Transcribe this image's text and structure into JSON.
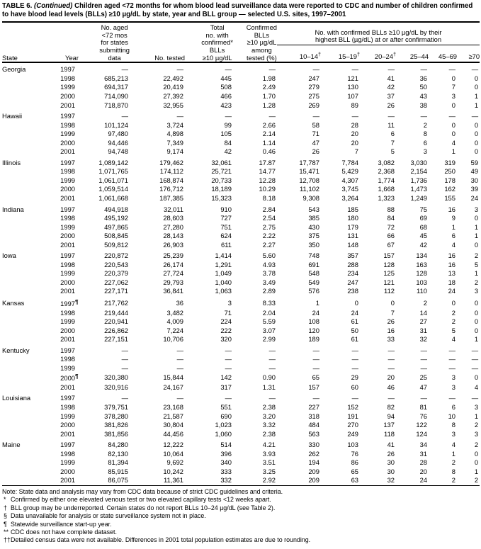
{
  "title": {
    "label": "TABLE 6.",
    "continued": "(Continued)",
    "text": "Children aged <72 months for whom blood lead surveillance data were reported to CDC and number of children confirmed to have blood lead levels (BLLs) ≥10 µg/dL by state, year and BLL group — selected U.S. sites, 1997–2001"
  },
  "header": {
    "state": "State",
    "year": "Year",
    "no_aged_lines": [
      "No. aged",
      "<72 mos",
      "for states",
      "submitting",
      "data"
    ],
    "no_tested": "No. tested",
    "total_confirmed_lines": [
      "Total",
      "no. with",
      "confirmed*",
      "BLLs",
      "≥10 µg/dL"
    ],
    "confirmed_pct_lines": [
      "Confirmed",
      "BLLs",
      "≥10 µg/dL",
      "among",
      "tested (%)"
    ],
    "group_header_lines": [
      "No. with confirmed BLLs ≥10 µg/dL by their",
      "highest BLL (µg/dL) at or after confirmation"
    ],
    "bll_columns": [
      {
        "label": "10–14",
        "marker": "†"
      },
      {
        "label": "15–19",
        "marker": "†"
      },
      {
        "label": "20–24",
        "marker": "†"
      },
      {
        "label": "25–44",
        "marker": ""
      },
      {
        "label": "45–69",
        "marker": ""
      },
      {
        "label": "≥70",
        "marker": ""
      }
    ]
  },
  "table": {
    "groups": [
      {
        "state": "Georgia",
        "rows": [
          {
            "year": "1997",
            "marker": "",
            "cells": [
              "—",
              "—",
              "—",
              "—",
              "—",
              "—",
              "—",
              "—",
              "—",
              "—"
            ]
          },
          {
            "year": "1998",
            "marker": "",
            "cells": [
              "685,213",
              "22,492",
              "445",
              "1.98",
              "247",
              "121",
              "41",
              "36",
              "0",
              "0"
            ]
          },
          {
            "year": "1999",
            "marker": "",
            "cells": [
              "694,317",
              "20,419",
              "508",
              "2.49",
              "279",
              "130",
              "42",
              "50",
              "7",
              "0"
            ]
          },
          {
            "year": "2000",
            "marker": "",
            "cells": [
              "714,090",
              "27,392",
              "466",
              "1.70",
              "275",
              "107",
              "37",
              "43",
              "3",
              "1"
            ]
          },
          {
            "year": "2001",
            "marker": "",
            "cells": [
              "718,870",
              "32,955",
              "423",
              "1.28",
              "269",
              "89",
              "26",
              "38",
              "0",
              "1"
            ]
          }
        ]
      },
      {
        "state": "Hawaii",
        "rows": [
          {
            "year": "1997",
            "marker": "",
            "cells": [
              "—",
              "—",
              "—",
              "—",
              "—",
              "—",
              "—",
              "—",
              "—",
              "—"
            ]
          },
          {
            "year": "1998",
            "marker": "",
            "cells": [
              "101,124",
              "3,724",
              "99",
              "2.66",
              "58",
              "28",
              "11",
              "2",
              "0",
              "0"
            ]
          },
          {
            "year": "1999",
            "marker": "",
            "cells": [
              "97,480",
              "4,898",
              "105",
              "2.14",
              "71",
              "20",
              "6",
              "8",
              "0",
              "0"
            ]
          },
          {
            "year": "2000",
            "marker": "",
            "cells": [
              "94,446",
              "7,349",
              "84",
              "1.14",
              "47",
              "20",
              "7",
              "6",
              "4",
              "0"
            ]
          },
          {
            "year": "2001",
            "marker": "",
            "cells": [
              "94,748",
              "9,174",
              "42",
              "0.46",
              "26",
              "7",
              "5",
              "3",
              "1",
              "0"
            ]
          }
        ]
      },
      {
        "state": "Illinois",
        "rows": [
          {
            "year": "1997",
            "marker": "",
            "cells": [
              "1,089,142",
              "179,462",
              "32,061",
              "17.87",
              "17,787",
              "7,784",
              "3,082",
              "3,030",
              "319",
              "59"
            ]
          },
          {
            "year": "1998",
            "marker": "",
            "cells": [
              "1,071,765",
              "174,112",
              "25,721",
              "14.77",
              "15,471",
              "5,429",
              "2,368",
              "2,154",
              "250",
              "49"
            ]
          },
          {
            "year": "1999",
            "marker": "",
            "cells": [
              "1,061,071",
              "168,874",
              "20,733",
              "12.28",
              "12,708",
              "4,307",
              "1,774",
              "1,736",
              "178",
              "30"
            ]
          },
          {
            "year": "2000",
            "marker": "",
            "cells": [
              "1,059,514",
              "176,712",
              "18,189",
              "10.29",
              "11,102",
              "3,745",
              "1,668",
              "1,473",
              "162",
              "39"
            ]
          },
          {
            "year": "2001",
            "marker": "",
            "cells": [
              "1,061,668",
              "187,385",
              "15,323",
              "8.18",
              "9,308",
              "3,264",
              "1,323",
              "1,249",
              "155",
              "24"
            ]
          }
        ]
      },
      {
        "state": "Indiana",
        "rows": [
          {
            "year": "1997",
            "marker": "",
            "cells": [
              "494,918",
              "32,011",
              "910",
              "2.84",
              "543",
              "185",
              "88",
              "75",
              "16",
              "3"
            ]
          },
          {
            "year": "1998",
            "marker": "",
            "cells": [
              "495,192",
              "28,603",
              "727",
              "2.54",
              "385",
              "180",
              "84",
              "69",
              "9",
              "0"
            ]
          },
          {
            "year": "1999",
            "marker": "",
            "cells": [
              "497,865",
              "27,280",
              "751",
              "2.75",
              "430",
              "179",
              "72",
              "68",
              "1",
              "1"
            ]
          },
          {
            "year": "2000",
            "marker": "",
            "cells": [
              "508,845",
              "28,143",
              "624",
              "2.22",
              "375",
              "131",
              "66",
              "45",
              "6",
              "1"
            ]
          },
          {
            "year": "2001",
            "marker": "",
            "cells": [
              "509,812",
              "26,903",
              "611",
              "2.27",
              "350",
              "148",
              "67",
              "42",
              "4",
              "0"
            ]
          }
        ]
      },
      {
        "state": "Iowa",
        "rows": [
          {
            "year": "1997",
            "marker": "",
            "cells": [
              "220,872",
              "25,239",
              "1,414",
              "5.60",
              "748",
              "357",
              "157",
              "134",
              "16",
              "2"
            ]
          },
          {
            "year": "1998",
            "marker": "",
            "cells": [
              "220,543",
              "26,174",
              "1,291",
              "4.93",
              "691",
              "288",
              "128",
              "163",
              "16",
              "5"
            ]
          },
          {
            "year": "1999",
            "marker": "",
            "cells": [
              "220,379",
              "27,724",
              "1,049",
              "3.78",
              "548",
              "234",
              "125",
              "128",
              "13",
              "1"
            ]
          },
          {
            "year": "2000",
            "marker": "",
            "cells": [
              "227,062",
              "29,793",
              "1,040",
              "3.49",
              "549",
              "247",
              "121",
              "103",
              "18",
              "2"
            ]
          },
          {
            "year": "2001",
            "marker": "",
            "cells": [
              "227,171",
              "36,841",
              "1,063",
              "2.89",
              "576",
              "238",
              "112",
              "110",
              "24",
              "3"
            ]
          }
        ]
      },
      {
        "state": "Kansas",
        "rows": [
          {
            "year": "1997",
            "marker": "¶",
            "cells": [
              "217,762",
              "36",
              "3",
              "8.33",
              "1",
              "0",
              "0",
              "2",
              "0",
              "0"
            ]
          },
          {
            "year": "1998",
            "marker": "",
            "cells": [
              "219,444",
              "3,482",
              "71",
              "2.04",
              "24",
              "24",
              "7",
              "14",
              "2",
              "0"
            ]
          },
          {
            "year": "1999",
            "marker": "",
            "cells": [
              "220,941",
              "4,009",
              "224",
              "5.59",
              "108",
              "61",
              "26",
              "27",
              "2",
              "0"
            ]
          },
          {
            "year": "2000",
            "marker": "",
            "cells": [
              "226,862",
              "7,224",
              "222",
              "3.07",
              "120",
              "50",
              "16",
              "31",
              "5",
              "0"
            ]
          },
          {
            "year": "2001",
            "marker": "",
            "cells": [
              "227,151",
              "10,706",
              "320",
              "2.99",
              "189",
              "61",
              "33",
              "32",
              "4",
              "1"
            ]
          }
        ]
      },
      {
        "state": "Kentucky",
        "rows": [
          {
            "year": "1997",
            "marker": "",
            "cells": [
              "—",
              "—",
              "—",
              "—",
              "—",
              "—",
              "—",
              "—",
              "—",
              "—"
            ]
          },
          {
            "year": "1998",
            "marker": "",
            "cells": [
              "—",
              "—",
              "—",
              "—",
              "—",
              "—",
              "—",
              "—",
              "—",
              "—"
            ]
          },
          {
            "year": "1999",
            "marker": "",
            "cells": [
              "—",
              "—",
              "—",
              "—",
              "—",
              "—",
              "—",
              "—",
              "—",
              "—"
            ]
          },
          {
            "year": "2000",
            "marker": "¶",
            "cells": [
              "320,380",
              "15,844",
              "142",
              "0.90",
              "65",
              "29",
              "20",
              "25",
              "3",
              "0"
            ]
          },
          {
            "year": "2001",
            "marker": "",
            "cells": [
              "320,916",
              "24,167",
              "317",
              "1.31",
              "157",
              "60",
              "46",
              "47",
              "3",
              "4"
            ]
          }
        ]
      },
      {
        "state": "Louisiana",
        "rows": [
          {
            "year": "1997",
            "marker": "",
            "cells": [
              "—",
              "—",
              "—",
              "—",
              "—",
              "—",
              "—",
              "—",
              "—",
              "—"
            ]
          },
          {
            "year": "1998",
            "marker": "",
            "cells": [
              "379,751",
              "23,168",
              "551",
              "2.38",
              "227",
              "152",
              "82",
              "81",
              "6",
              "3"
            ]
          },
          {
            "year": "1999",
            "marker": "",
            "cells": [
              "378,280",
              "21,587",
              "690",
              "3.20",
              "318",
              "191",
              "94",
              "76",
              "10",
              "1"
            ]
          },
          {
            "year": "2000",
            "marker": "",
            "cells": [
              "381,826",
              "30,804",
              "1,023",
              "3.32",
              "484",
              "270",
              "137",
              "122",
              "8",
              "2"
            ]
          },
          {
            "year": "2001",
            "marker": "",
            "cells": [
              "381,856",
              "44,456",
              "1,060",
              "2.38",
              "563",
              "249",
              "118",
              "124",
              "3",
              "3"
            ]
          }
        ]
      },
      {
        "state": "Maine",
        "rows": [
          {
            "year": "1997",
            "marker": "",
            "cells": [
              "84,280",
              "12,222",
              "514",
              "4.21",
              "330",
              "103",
              "41",
              "34",
              "4",
              "2"
            ]
          },
          {
            "year": "1998",
            "marker": "",
            "cells": [
              "82,130",
              "10,064",
              "396",
              "3.93",
              "262",
              "76",
              "26",
              "31",
              "1",
              "0"
            ]
          },
          {
            "year": "1999",
            "marker": "",
            "cells": [
              "81,394",
              "9,692",
              "340",
              "3.51",
              "194",
              "86",
              "30",
              "28",
              "2",
              "0"
            ]
          },
          {
            "year": "2000",
            "marker": "",
            "cells": [
              "85,915",
              "10,242",
              "333",
              "3.25",
              "209",
              "65",
              "30",
              "20",
              "8",
              "1"
            ]
          },
          {
            "year": "2001",
            "marker": "",
            "cells": [
              "86,075",
              "11,361",
              "332",
              "2.92",
              "209",
              "63",
              "32",
              "24",
              "2",
              "2"
            ]
          }
        ]
      }
    ]
  },
  "footnotes": {
    "note": "Note: State data and analysis may vary from CDC data because of strict CDC guidelines and criteria.",
    "items": [
      {
        "marker": "*",
        "text": "Confirmed by either one elevated venous test or two elevated capillary tests <12 weeks apart."
      },
      {
        "marker": "†",
        "text": "BLL group may be underreported. Certain states do not report BLLs 10–24 µg/dL (see Table 2)."
      },
      {
        "marker": "§",
        "text": "Data unavailable for analysis or state surveillance system not in place."
      },
      {
        "marker": "¶",
        "text": "Statewide surveillance start-up year."
      },
      {
        "marker": "**",
        "text": "CDC does not have complete dataset."
      },
      {
        "marker": "††",
        "text": "Detailed census data were not available. Differences in 2001 total population estimates are due to rounding."
      }
    ]
  }
}
